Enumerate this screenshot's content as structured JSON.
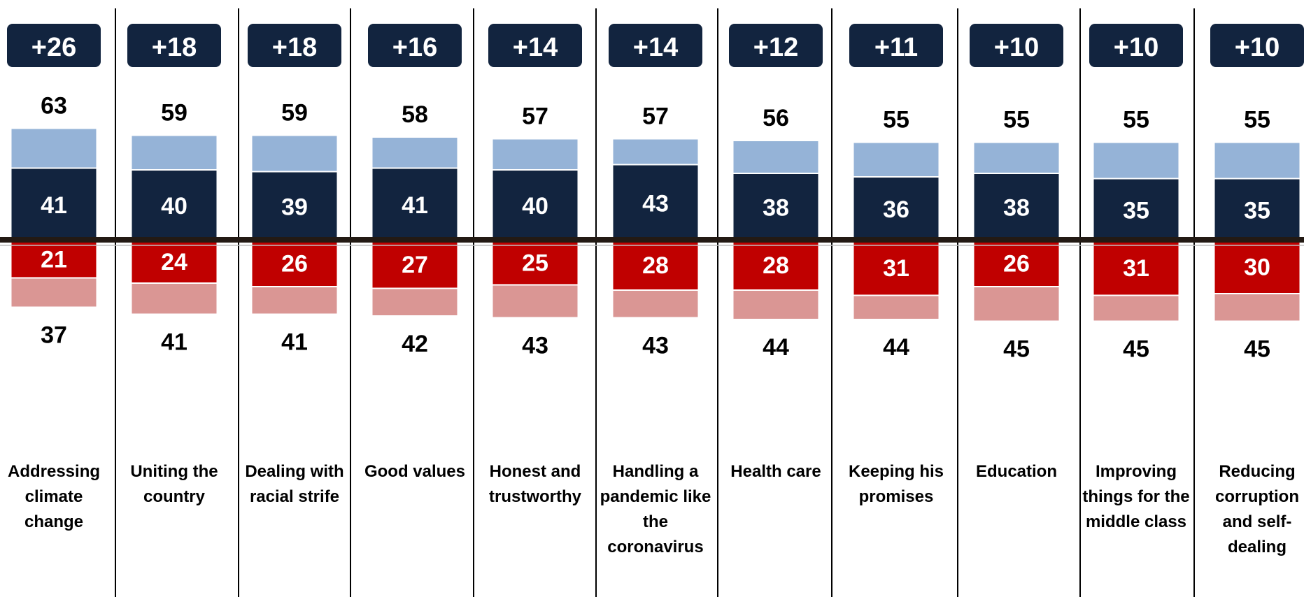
{
  "chart_data": {
    "type": "bar",
    "categories": [
      [
        "Addressing",
        "climate",
        "change"
      ],
      [
        "Uniting the",
        "country"
      ],
      [
        "Dealing with",
        "racial strife"
      ],
      [
        "Good values"
      ],
      [
        "Honest and",
        "trustworthy"
      ],
      [
        "Handling a",
        "pandemic like",
        "the",
        "coronavirus"
      ],
      [
        "Health care"
      ],
      [
        "Keeping his",
        "promises"
      ],
      [
        "Education"
      ],
      [
        "Improving",
        "things for the",
        "middle class"
      ],
      [
        "Reducing",
        "corruption",
        "and self-",
        "dealing"
      ]
    ],
    "net_labels": [
      "+26",
      "+18",
      "+18",
      "+16",
      "+14",
      "+14",
      "+12",
      "+11",
      "+10",
      "+10",
      "+10"
    ],
    "positive_totals": [
      63,
      59,
      59,
      58,
      57,
      57,
      56,
      55,
      55,
      55,
      55
    ],
    "negative_totals": [
      37,
      41,
      41,
      42,
      43,
      43,
      44,
      44,
      45,
      45,
      45
    ],
    "series": [
      {
        "values": [
          41,
          40,
          39,
          41,
          40,
          43,
          38,
          36,
          38,
          35,
          35
        ],
        "color": "#12243f"
      },
      {
        "values": [
          22,
          19,
          20,
          17,
          17,
          14,
          18,
          19,
          17,
          20,
          20
        ],
        "color": "#95b3d7"
      },
      {
        "values": [
          21,
          24,
          26,
          27,
          25,
          28,
          28,
          31,
          26,
          31,
          30
        ],
        "color": "#c00000"
      },
      {
        "values": [
          16,
          17,
          15,
          15,
          18,
          15,
          16,
          13,
          19,
          14,
          15
        ],
        "color": "#da9694"
      }
    ],
    "baseline": 0,
    "grid": false,
    "legend": "none"
  },
  "colors": {
    "divider": "#000000",
    "baseline": "#231a14",
    "net_box": "#12243f"
  }
}
